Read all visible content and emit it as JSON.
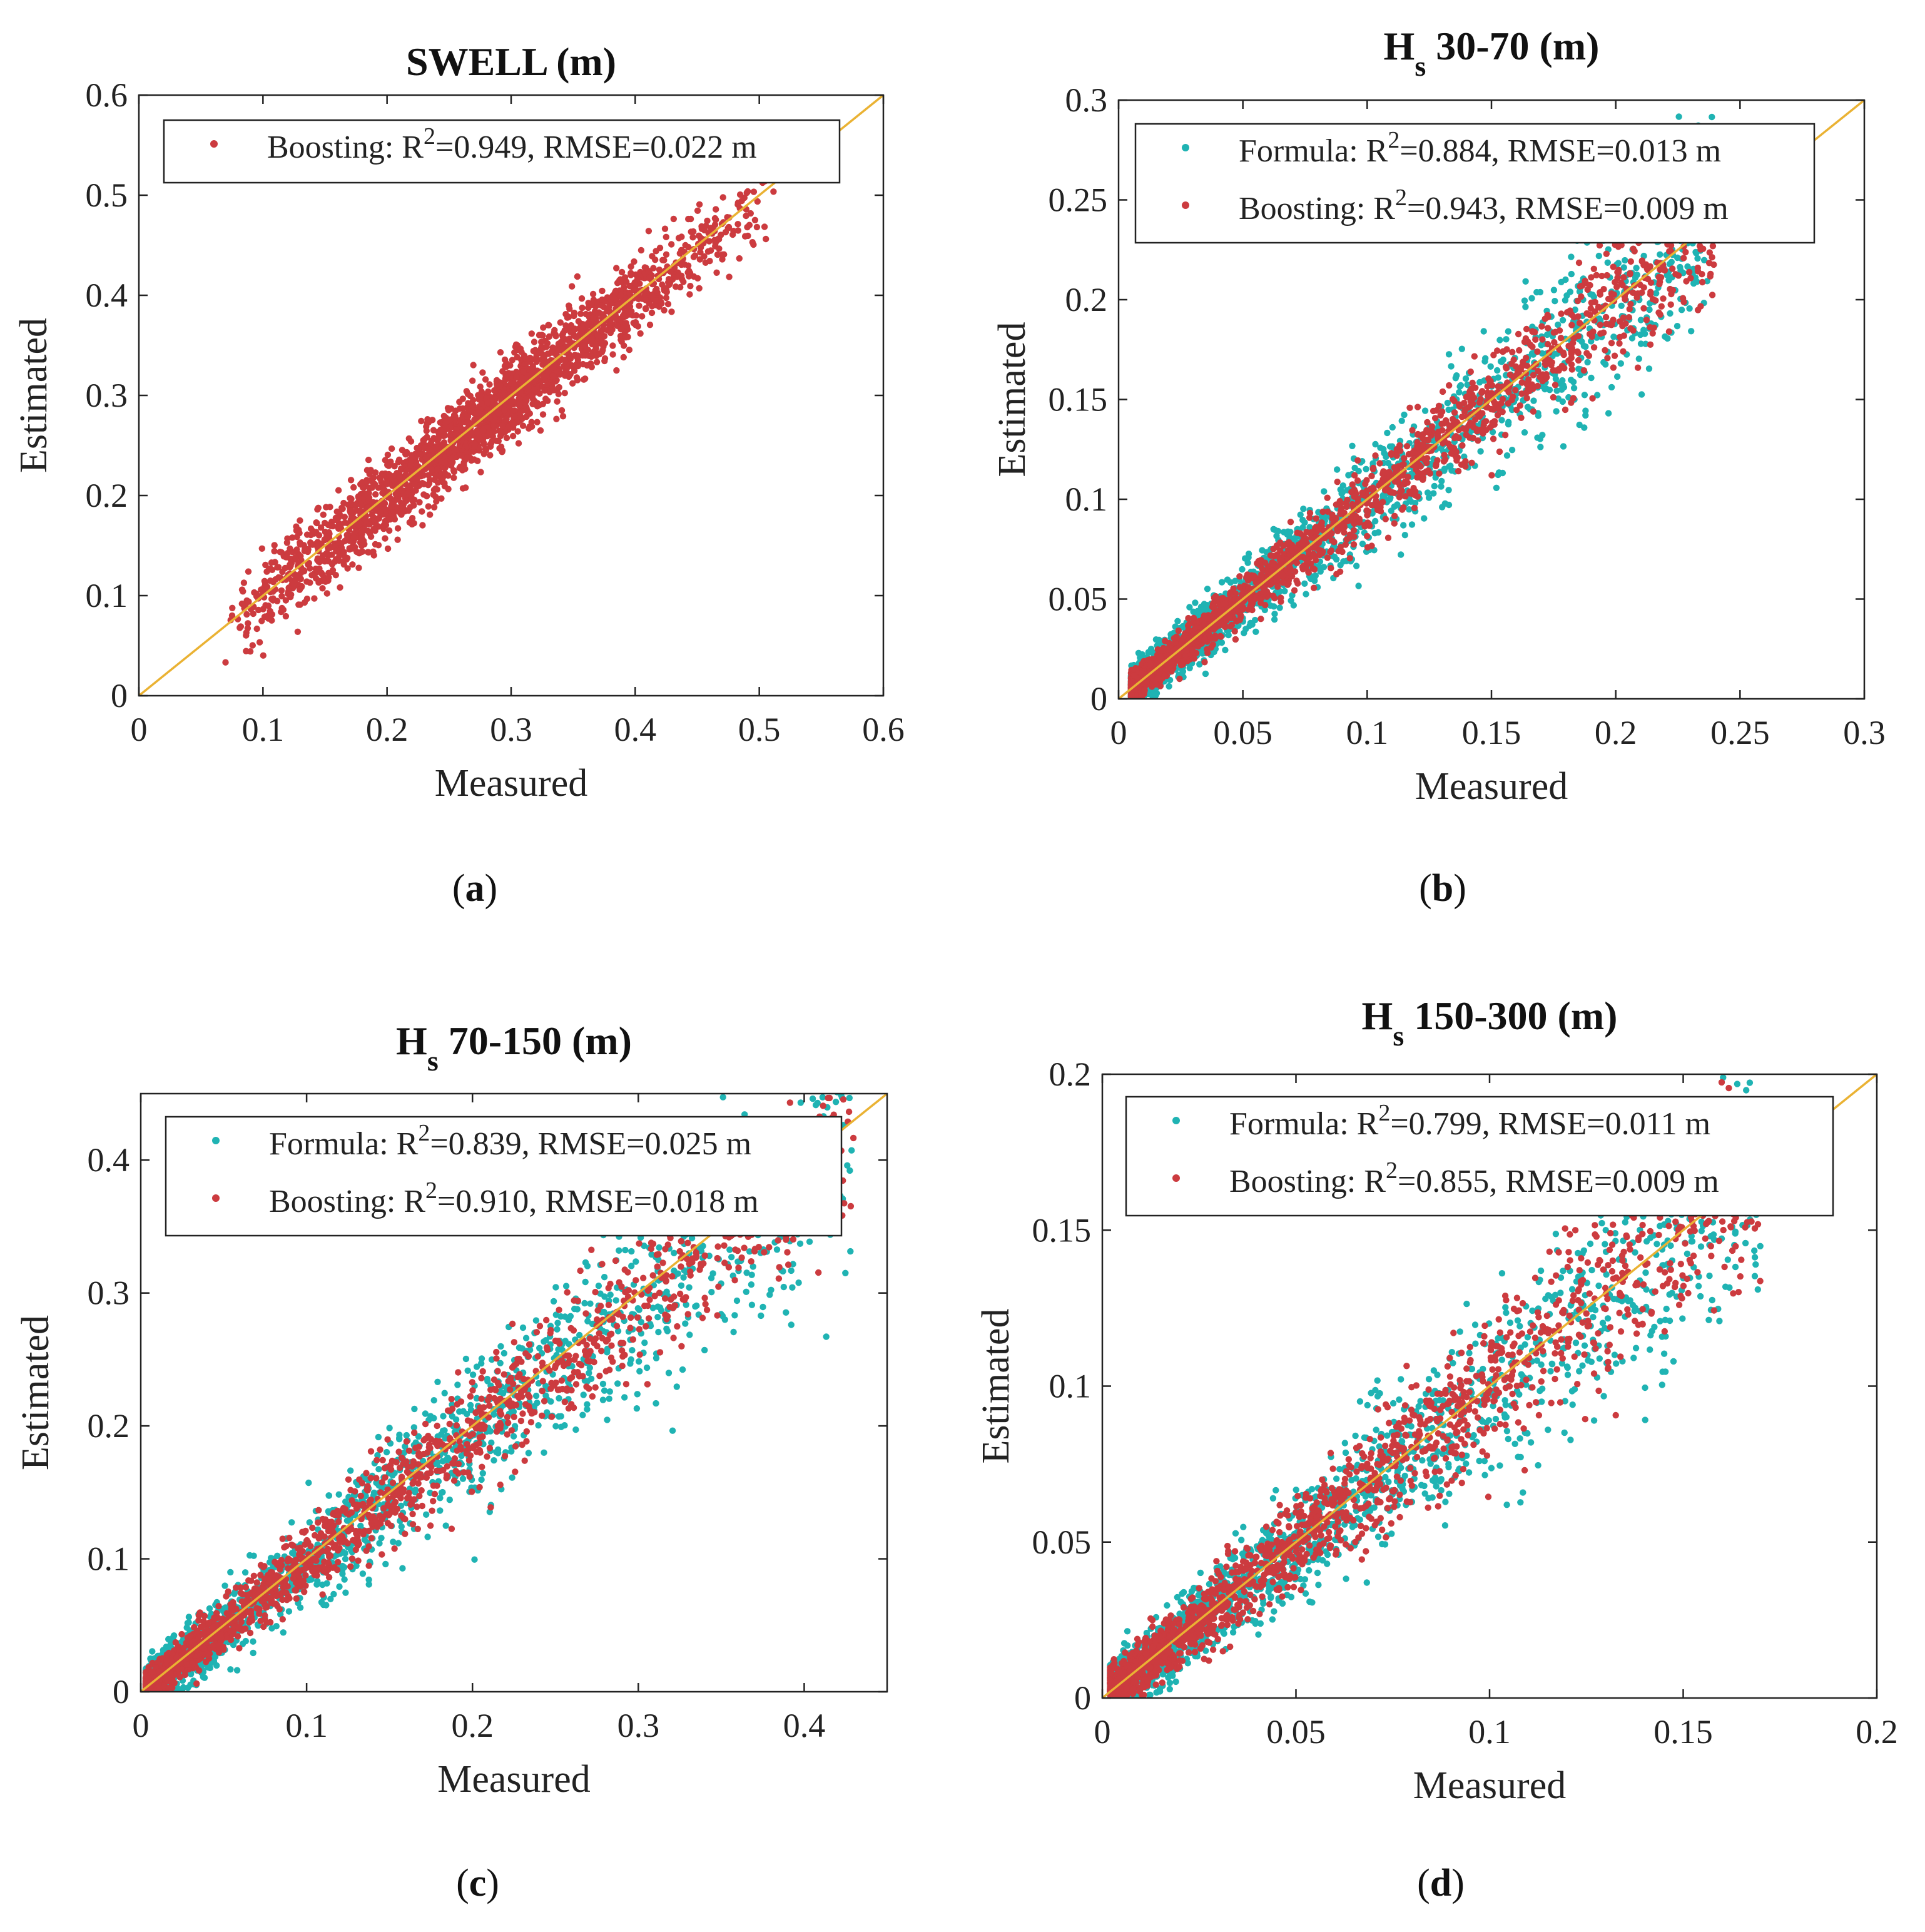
{
  "figure": {
    "panel_labels": [
      "(a)",
      "(b)",
      "(c)",
      "(d)"
    ],
    "colors": {
      "boosting": "#cc3b3f",
      "formula": "#1fb3b3",
      "identity_line": "#eab233",
      "axes": "#222222"
    }
  },
  "chart_data": [
    {
      "type": "scatter",
      "panel": "(a)",
      "title": "SWELL (m)",
      "title_main": "SWELL (m)",
      "xlabel": "Measured",
      "ylabel": "Estimated",
      "xlim": [
        0,
        0.6
      ],
      "ylim": [
        0,
        0.6
      ],
      "xticks": [
        0,
        0.1,
        0.2,
        0.3,
        0.4,
        0.5,
        0.6
      ],
      "yticks": [
        0,
        0.1,
        0.2,
        0.3,
        0.4,
        0.5,
        0.6
      ],
      "xtick_labels": [
        "0",
        "0.1",
        "0.2",
        "0.3",
        "0.4",
        "0.5",
        "0.6"
      ],
      "ytick_labels": [
        "0",
        "0.1",
        "0.2",
        "0.3",
        "0.4",
        "0.5",
        "0.6"
      ],
      "legend_position": "top-left",
      "identity_line": true,
      "series": [
        {
          "name": "Boosting",
          "legend_prefix": "Boosting: R",
          "legend_suffix": "=0.949, RMSE=0.022 m",
          "r2": 0.949,
          "rmse": 0.022,
          "color": "#cc3b3f",
          "n_points": 2200,
          "x_range": [
            0.065,
            0.52
          ],
          "bias": -0.005,
          "spread": 0.02
        }
      ]
    },
    {
      "type": "scatter",
      "panel": "(b)",
      "title": "Hs 30-70 (m)",
      "title_main": "H",
      "title_sub": "s",
      "title_rest": " 30-70 (m)",
      "xlabel": "Measured",
      "ylabel": "Estimated",
      "xlim": [
        0,
        0.3
      ],
      "ylim": [
        0,
        0.3
      ],
      "xticks": [
        0,
        0.05,
        0.1,
        0.15,
        0.2,
        0.25,
        0.3
      ],
      "yticks": [
        0,
        0.05,
        0.1,
        0.15,
        0.2,
        0.25,
        0.3
      ],
      "xtick_labels": [
        "0",
        "0.05",
        "0.1",
        "0.15",
        "0.2",
        "0.25",
        "0.3"
      ],
      "ytick_labels": [
        "0",
        "0.05",
        "0.1",
        "0.15",
        "0.2",
        "0.25",
        "0.3"
      ],
      "legend_position": "top",
      "identity_line": true,
      "series": [
        {
          "name": "Formula",
          "legend_prefix": "Formula: R",
          "legend_suffix": "=0.884, RMSE=0.013 m",
          "r2": 0.884,
          "rmse": 0.013,
          "color": "#1fb3b3",
          "n_points": 2000,
          "x_range": [
            0.005,
            0.24
          ],
          "bias": -0.004,
          "spread": 0.013
        },
        {
          "name": "Boosting",
          "legend_prefix": "Boosting: R",
          "legend_suffix": "=0.943, RMSE=0.009 m",
          "r2": 0.943,
          "rmse": 0.009,
          "color": "#cc3b3f",
          "n_points": 2000,
          "x_range": [
            0.005,
            0.24
          ],
          "bias": -0.002,
          "spread": 0.009
        }
      ]
    },
    {
      "type": "scatter",
      "panel": "(c)",
      "title": "Hs 70-150 (m)",
      "title_main": "H",
      "title_sub": "s",
      "title_rest": " 70-150 (m)",
      "xlabel": "Measured",
      "ylabel": "Estimated",
      "xlim": [
        0,
        0.45
      ],
      "ylim": [
        0,
        0.45
      ],
      "xticks": [
        0,
        0.1,
        0.2,
        0.3,
        0.4
      ],
      "yticks": [
        0,
        0.1,
        0.2,
        0.3,
        0.4
      ],
      "xtick_labels": [
        "0",
        "0.1",
        "0.2",
        "0.3",
        "0.4"
      ],
      "ytick_labels": [
        "0",
        "0.1",
        "0.2",
        "0.3",
        "0.4"
      ],
      "legend_position": "top",
      "identity_line": true,
      "series": [
        {
          "name": "Formula",
          "legend_prefix": "Formula: R",
          "legend_suffix": "=0.839, RMSE=0.025 m",
          "r2": 0.839,
          "rmse": 0.025,
          "color": "#1fb3b3",
          "n_points": 1800,
          "x_range": [
            0.003,
            0.43
          ],
          "bias": -0.012,
          "spread": 0.025
        },
        {
          "name": "Boosting",
          "legend_prefix": "Boosting: R",
          "legend_suffix": "=0.910, RMSE=0.018 m",
          "r2": 0.91,
          "rmse": 0.018,
          "color": "#cc3b3f",
          "n_points": 1800,
          "x_range": [
            0.003,
            0.43
          ],
          "bias": -0.008,
          "spread": 0.018
        }
      ]
    },
    {
      "type": "scatter",
      "panel": "(d)",
      "title": "Hs 150-300 (m)",
      "title_main": "H",
      "title_sub": "s",
      "title_rest": " 150-300 (m)",
      "xlabel": "Measured",
      "ylabel": "Estimated",
      "xlim": [
        0,
        0.2
      ],
      "ylim": [
        0,
        0.2
      ],
      "xticks": [
        0,
        0.05,
        0.1,
        0.15,
        0.2
      ],
      "yticks": [
        0,
        0.05,
        0.1,
        0.15,
        0.2
      ],
      "xtick_labels": [
        "0",
        "0.05",
        "0.1",
        "0.15",
        "0.2"
      ],
      "ytick_labels": [
        "0",
        "0.05",
        "0.1",
        "0.15",
        "0.2"
      ],
      "legend_position": "top",
      "identity_line": true,
      "series": [
        {
          "name": "Formula",
          "legend_prefix": "Formula: R",
          "legend_suffix": "=0.799, RMSE=0.011 m",
          "r2": 0.799,
          "rmse": 0.011,
          "color": "#1fb3b3",
          "n_points": 1800,
          "x_range": [
            0.002,
            0.17
          ],
          "bias": -0.003,
          "spread": 0.011
        },
        {
          "name": "Boosting",
          "legend_prefix": "Boosting: R",
          "legend_suffix": "=0.855, RMSE=0.009 m",
          "r2": 0.855,
          "rmse": 0.009,
          "color": "#cc3b3f",
          "n_points": 1800,
          "x_range": [
            0.002,
            0.17
          ],
          "bias": -0.001,
          "spread": 0.009
        }
      ]
    }
  ]
}
